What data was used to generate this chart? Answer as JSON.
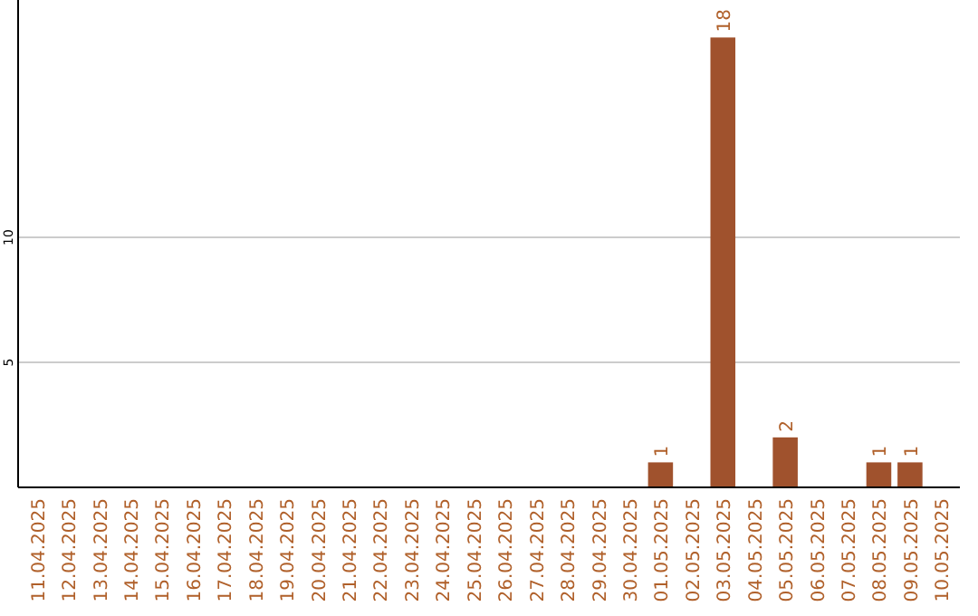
{
  "chart_data": {
    "type": "bar",
    "categories": [
      "11.04.2025",
      "12.04.2025",
      "13.04.2025",
      "14.04.2025",
      "15.04.2025",
      "16.04.2025",
      "17.04.2025",
      "18.04.2025",
      "19.04.2025",
      "20.04.2025",
      "21.04.2025",
      "22.04.2025",
      "23.04.2025",
      "24.04.2025",
      "25.04.2025",
      "26.04.2025",
      "27.04.2025",
      "28.04.2025",
      "29.04.2025",
      "30.04.2025",
      "01.05.2025",
      "02.05.2025",
      "03.05.2025",
      "04.05.2025",
      "05.05.2025",
      "06.05.2025",
      "07.05.2025",
      "08.05.2025",
      "09.05.2025",
      "10.05.2025"
    ],
    "values": [
      0,
      0,
      0,
      0,
      0,
      0,
      0,
      0,
      0,
      0,
      0,
      0,
      0,
      0,
      0,
      0,
      0,
      0,
      0,
      0,
      1,
      0,
      18,
      0,
      2,
      0,
      0,
      1,
      1,
      0
    ],
    "value_labels": [
      null,
      null,
      null,
      null,
      null,
      null,
      null,
      null,
      null,
      null,
      null,
      null,
      null,
      null,
      null,
      null,
      null,
      null,
      null,
      null,
      "1",
      null,
      "18",
      null,
      "2",
      null,
      null,
      "1",
      "1",
      null
    ],
    "color": "#a0522d",
    "ylim": [
      0,
      19.5
    ],
    "yticks": [
      5,
      10
    ],
    "grid": "y"
  }
}
